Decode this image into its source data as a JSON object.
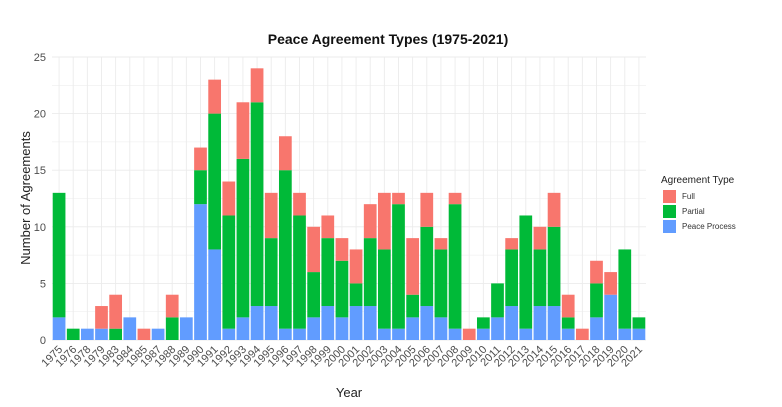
{
  "chart_data": {
    "type": "bar",
    "stacked": true,
    "title": "Peace Agreement Types (1975-2021)",
    "xlabel": "Year",
    "ylabel": "Number of Agreements",
    "ylim": [
      0,
      25
    ],
    "yticks": [
      0,
      5,
      10,
      15,
      20,
      25
    ],
    "grid": true,
    "legend": {
      "title": "Agreement Type",
      "position": "right",
      "entries": [
        "Full",
        "Partial",
        "Peace Process"
      ]
    },
    "categories": [
      "1975",
      "1976",
      "1978",
      "1979",
      "1983",
      "1984",
      "1985",
      "1987",
      "1988",
      "1989",
      "1990",
      "1991",
      "1992",
      "1993",
      "1994",
      "1995",
      "1996",
      "1997",
      "1998",
      "1999",
      "2000",
      "2001",
      "2002",
      "2003",
      "2004",
      "2005",
      "2006",
      "2007",
      "2008",
      "2009",
      "2010",
      "2011",
      "2012",
      "2013",
      "2014",
      "2015",
      "2016",
      "2017",
      "2018",
      "2019",
      "2020",
      "2021"
    ],
    "series": [
      {
        "name": "Peace Process",
        "color": "#619CFF",
        "values": [
          2,
          0,
          1,
          1,
          0,
          2,
          0,
          1,
          0,
          2,
          12,
          8,
          1,
          2,
          3,
          3,
          1,
          1,
          2,
          3,
          2,
          3,
          3,
          1,
          1,
          2,
          3,
          2,
          1,
          0,
          1,
          2,
          3,
          1,
          3,
          3,
          1,
          0,
          2,
          4,
          1,
          1
        ]
      },
      {
        "name": "Partial",
        "color": "#00BA38",
        "values": [
          11,
          1,
          0,
          0,
          1,
          0,
          0,
          0,
          2,
          0,
          3,
          12,
          10,
          14,
          18,
          6,
          14,
          10,
          4,
          6,
          5,
          2,
          6,
          7,
          11,
          2,
          7,
          6,
          11,
          0,
          1,
          3,
          5,
          10,
          5,
          7,
          1,
          0,
          3,
          0,
          7,
          1
        ]
      },
      {
        "name": "Full",
        "color": "#F8766D",
        "values": [
          0,
          0,
          0,
          2,
          3,
          0,
          1,
          0,
          2,
          0,
          2,
          3,
          3,
          5,
          3,
          4,
          3,
          2,
          4,
          2,
          2,
          3,
          3,
          5,
          1,
          5,
          3,
          1,
          1,
          1,
          0,
          0,
          1,
          0,
          2,
          3,
          2,
          1,
          2,
          2,
          0,
          0
        ]
      }
    ]
  }
}
